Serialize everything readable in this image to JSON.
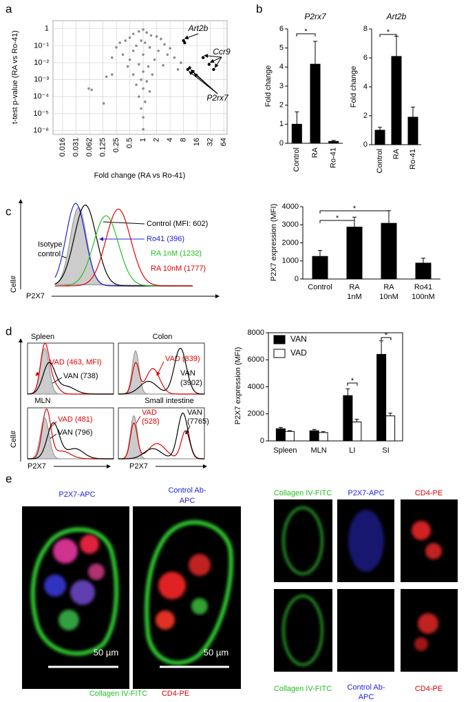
{
  "panels": [
    "a",
    "b",
    "c",
    "d",
    "e"
  ],
  "chart_data": [
    {
      "type": "scatter",
      "x_label": "Fold change (RA vs Ro-41)",
      "y_label": "t-test p-value (RA vs Ro-41)",
      "log_x": true,
      "log_y": true,
      "grid": true,
      "xlim": [
        0.0095,
        76
      ],
      "ylim": [
        6e-07,
        3
      ],
      "xticks": [
        {
          "value": 0.015625,
          "label": "0.016"
        },
        {
          "value": 0.03125,
          "label": "0.031"
        },
        {
          "value": 0.0625,
          "label": "0.062"
        },
        0.125,
        0.25,
        0.5,
        1,
        2,
        4,
        8,
        16,
        32,
        64
      ],
      "yticks": [
        1,
        {
          "value": 0.1,
          "label": "10⁻¹"
        },
        {
          "value": 0.01,
          "label": "10⁻²"
        },
        {
          "value": 0.001,
          "label": "10⁻³"
        },
        {
          "value": 0.0001,
          "label": "10⁻⁴"
        },
        {
          "value": 1e-05,
          "label": "10⁻⁵"
        },
        {
          "value": 1e-06,
          "label": "10⁻⁶"
        }
      ],
      "series": [
        {
          "color": "#8c8c8c",
          "x": [
            1,
            0.8,
            1.2,
            0.6,
            1.5,
            0.5,
            2,
            0.4,
            2.5,
            0.9,
            1.1,
            0.3,
            3,
            0.7,
            1.4,
            0.25,
            4,
            0.6,
            2.2,
            0.35,
            3.5,
            1,
            0.5,
            1.8,
            5,
            0.2,
            0.8,
            1.3,
            0.45,
            2.8,
            1,
            0.6,
            1.6,
            0.9,
            1.2,
            0.7,
            1,
            1.4,
            0.8,
            1.1,
            0.9,
            1,
            1,
            0.06,
            0.07,
            0.15,
            0.2,
            7,
            6,
            0.13
          ],
          "values": [
            0.9,
            0.7,
            0.6,
            0.5,
            0.4,
            0.3,
            0.35,
            0.2,
            0.25,
            0.2,
            0.15,
            0.15,
            0.12,
            0.1,
            0.08,
            0.08,
            0.07,
            0.05,
            0.05,
            0.03,
            0.03,
            0.03,
            0.015,
            0.015,
            0.02,
            0.02,
            0.008,
            0.006,
            0.006,
            0.007,
            0.003,
            0.002,
            0.002,
            0.001,
            0.0008,
            0.0005,
            0.0003,
            0.0002,
            0.0001,
            5e-05,
            2e-05,
            6e-06,
            1.2e-06,
            0.0003,
            0.00025,
            0.0015,
            0.002,
            0.01,
            0.004,
            4e-05
          ]
        },
        {
          "color": "#000000",
          "x": [
            8,
            8.5,
            10,
            11,
            13,
            22,
            30,
            38
          ],
          "values": [
            0.2,
            0.15,
            0.004,
            0.005,
            0.003,
            0.02,
            0.008,
            0.004
          ]
        }
      ],
      "annotations": [
        "Art2b",
        "Ccr9",
        "P2rx7"
      ]
    },
    {
      "type": "bar",
      "title": "P2rx7",
      "categories": [
        "Control",
        "RA",
        "Ro-41"
      ],
      "values": [
        1,
        4.15,
        0.1
      ],
      "errors": [
        0.65,
        1.2,
        0.05
      ],
      "color": "#000000",
      "ylim": [
        0,
        6
      ],
      "yticks": [
        0,
        1,
        2,
        3,
        4,
        5,
        6
      ],
      "y_label": "Fold change",
      "annotations": [
        "*"
      ]
    },
    {
      "type": "bar",
      "title": "Art2b",
      "categories": [
        "Control",
        "RA",
        "Ro-41"
      ],
      "values": [
        1,
        6.1,
        1.9
      ],
      "errors": [
        0.2,
        1.4,
        0.7
      ],
      "color": "#000000",
      "ylim": [
        0,
        8
      ],
      "yticks": [
        0,
        2,
        4,
        6,
        8
      ],
      "y_label": "Fold change",
      "annotations": [
        "*"
      ]
    },
    {
      "type": "bar",
      "categories": [
        [
          "Control"
        ],
        [
          "RA",
          "1nM"
        ],
        [
          "RA",
          "10nM"
        ],
        [
          "Ro41",
          "100nM"
        ]
      ],
      "values": [
        1250,
        2870,
        3080,
        880
      ],
      "errors": [
        330,
        550,
        700,
        270
      ],
      "color": "#000000",
      "ylim": [
        0,
        4000
      ],
      "yticks": [
        0,
        1000,
        2000,
        3000,
        4000
      ],
      "y_label": "P2X7 expression (MFI)",
      "annotations": [
        "*",
        "*"
      ]
    },
    {
      "type": "bar",
      "categories": [
        "Spleen",
        "MLN",
        "LI",
        "SI"
      ],
      "series": [
        {
          "name": "VAN",
          "color": "#000000",
          "values": [
            900,
            750,
            3350,
            6400
          ],
          "errors": [
            100,
            100,
            500,
            1000
          ]
        },
        {
          "name": "VAD",
          "color": "#ffffff",
          "values": [
            700,
            620,
            1400,
            1850
          ],
          "errors": [
            60,
            60,
            200,
            200
          ]
        }
      ],
      "ylim": [
        0,
        8000
      ],
      "yticks": [
        0,
        2000,
        4000,
        6000,
        8000
      ],
      "y_label": "P2X7 expression (MFI)",
      "legend": "upper left",
      "annotations": [
        "*",
        "*"
      ]
    }
  ],
  "flow_c": {
    "y_label": "Cell#",
    "x_label": "P2X7",
    "labels": [
      "Control (MFI: 602)",
      "Ro41 (396)",
      "RA 1nM (1232)",
      "RA 10nM (1777)"
    ],
    "isotype": [
      "Isotype",
      "control"
    ]
  },
  "flow_d": {
    "y_label": "Cell#",
    "x_label": [
      "P2X7",
      "P2X7"
    ],
    "panels": [
      {
        "title": "Spleen",
        "vad": [
          "VAD (463, MFI)"
        ],
        "van": [
          "VAN (738)"
        ]
      },
      {
        "title": "Colon",
        "vad": [
          "VAD (839)"
        ],
        "van": [
          "VAN",
          "(3902)"
        ]
      },
      {
        "title": "MLN",
        "vad": [
          "VAD (481)"
        ],
        "van": [
          "VAN (796)"
        ]
      },
      {
        "title": "Small intestine",
        "vad": [
          "VAD",
          "(528)"
        ],
        "van": [
          "VAN",
          "(7765)"
        ]
      }
    ]
  },
  "images": {
    "left_labels": [
      [
        "P2X7-APC"
      ],
      [
        "Control Ab-",
        "APC"
      ]
    ],
    "scale": [
      "50 µm",
      "50 µm"
    ],
    "left_bottom": [
      "Collagen IV-FITC",
      "CD4-PE"
    ],
    "grid_top": [
      "Collagen IV-FITC",
      "P2X7-APC",
      "CD4-PE"
    ],
    "grid_bottom": [
      [
        "Collagen IV-FITC"
      ],
      [
        "Control Ab-",
        "APC"
      ],
      [
        "CD4-PE"
      ]
    ]
  }
}
